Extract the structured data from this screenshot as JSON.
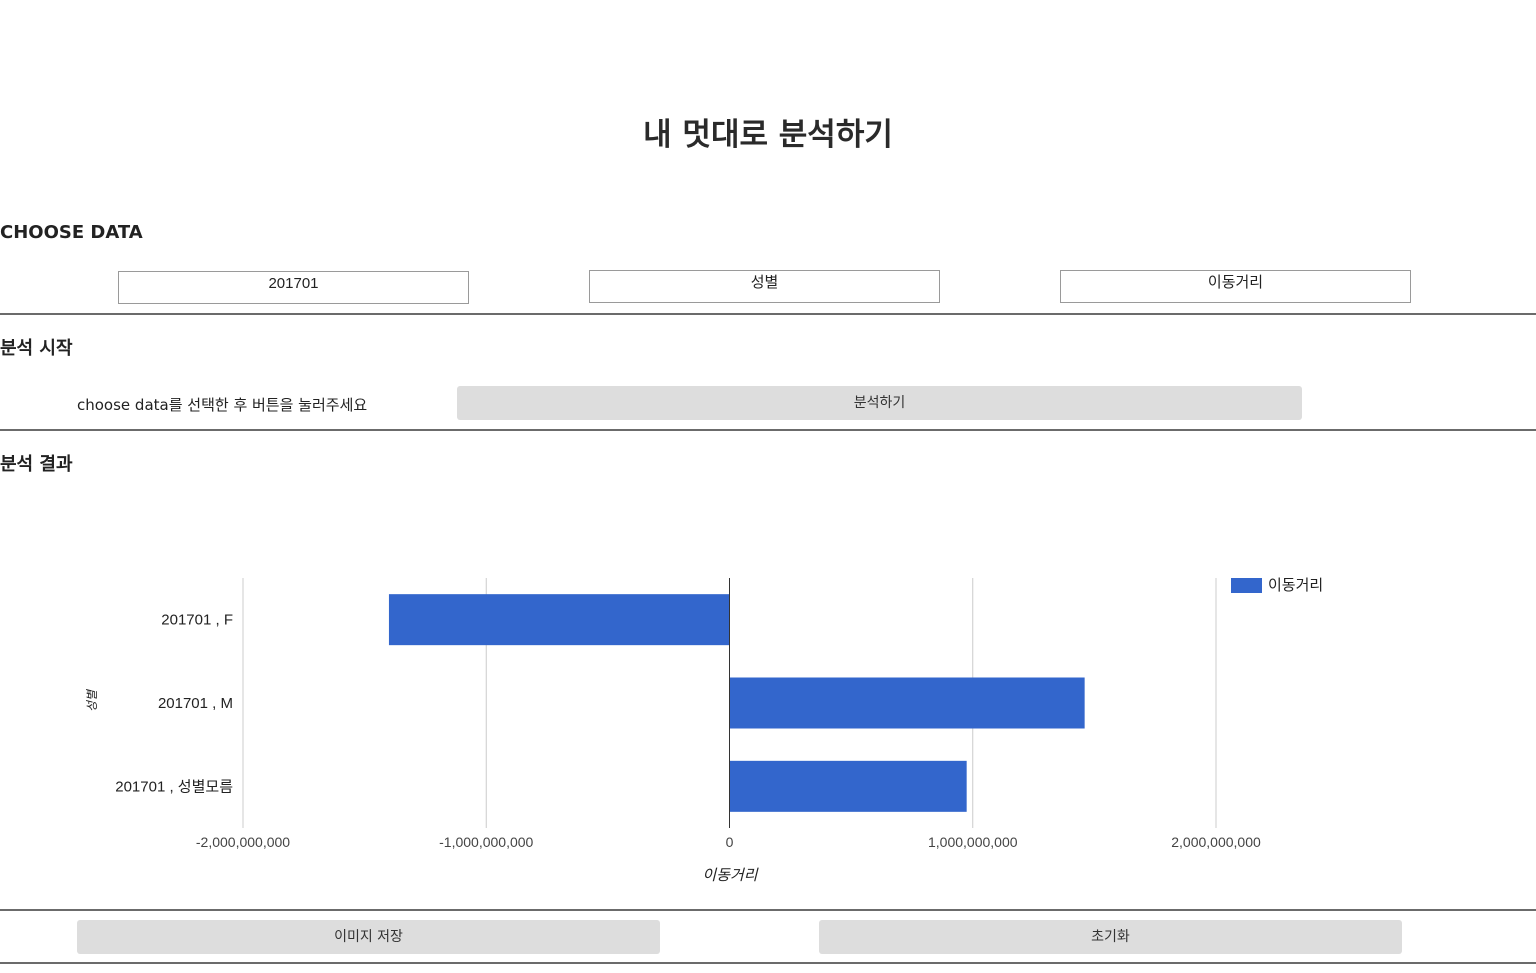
{
  "header": {
    "title": "내 멋대로 분석하기"
  },
  "choose": {
    "heading": "CHOOSE DATA",
    "selects": [
      {
        "value": "201701"
      },
      {
        "value": "성별"
      },
      {
        "value": "이동거리"
      }
    ]
  },
  "start": {
    "heading": "분석 시작",
    "hint": "choose data를 선택한 후 버튼을 눌러주세요",
    "button_label": "분석하기"
  },
  "result": {
    "heading": "분석 결과"
  },
  "chart_data": {
    "type": "bar",
    "orientation": "horizontal",
    "categories": [
      "201701 , F",
      "201701 , M",
      "201701 , 성별모름"
    ],
    "series": [
      {
        "name": "이동거리",
        "values": [
          -1400000000,
          1460000000,
          975000000
        ],
        "color": "#3366cc"
      }
    ],
    "xlabel": "이동거리",
    "ylabel": "성별",
    "xlim": [
      -2000000000,
      2000000000
    ],
    "x_ticks": [
      -2000000000,
      -1000000000,
      0,
      1000000000,
      2000000000
    ],
    "x_tick_labels": [
      "-2,000,000,000",
      "-1,000,000,000",
      "0",
      "1,000,000,000",
      "2,000,000,000"
    ],
    "grid": true,
    "legend": "top-right"
  },
  "footer": {
    "save_label": "이미지 저장",
    "reset_label": "초기화"
  }
}
